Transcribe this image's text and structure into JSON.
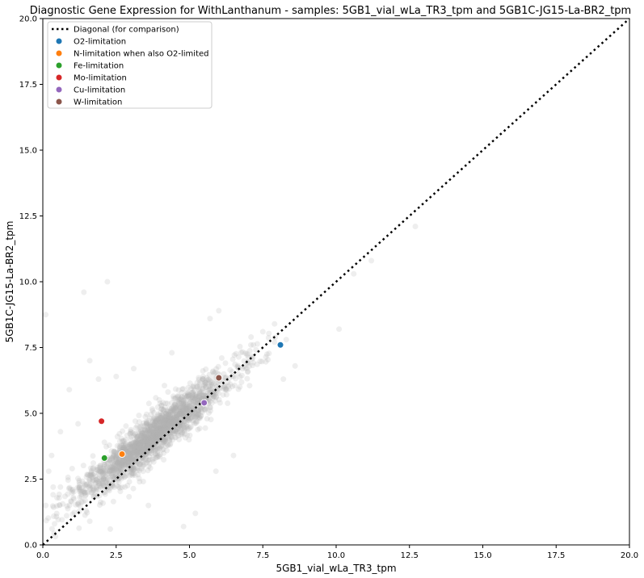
{
  "chart_data": {
    "type": "scatter",
    "title": "Diagnostic Gene Expression for WithLanthanum - samples: 5GB1_vial_wLa_TR3_tpm and 5GB1C-JG15-La-BR2_tpm",
    "xlabel": "5GB1_vial_wLa_TR3_tpm",
    "ylabel": "5GB1C-JG15-La-BR2_tpm",
    "xlim": [
      0,
      20
    ],
    "ylim": [
      0,
      20
    ],
    "xticks": [
      "0.0",
      "2.5",
      "5.0",
      "7.5",
      "10.0",
      "12.5",
      "15.0",
      "17.5",
      "20.0"
    ],
    "yticks": [
      "0.0",
      "2.5",
      "5.0",
      "7.5",
      "10.0",
      "12.5",
      "15.0",
      "17.5",
      "20.0"
    ],
    "grid": false,
    "legend_position": "top-left",
    "diagonal": {
      "label": "Diagonal (for comparison)",
      "from": [
        0,
        0
      ],
      "to": [
        20,
        20
      ],
      "style": "dotted",
      "color": "#000000"
    },
    "background_series": {
      "color": "#b0b0b0",
      "opacity": 0.22,
      "approx_point_count": 2000,
      "trend": "y ≈ 0.85 + 0.87·x, dense cluster between x≈1.5 and x≈7",
      "outliers": [
        [
          0.1,
          8.75
        ],
        [
          1.4,
          9.6
        ],
        [
          2.2,
          10.0
        ],
        [
          1.6,
          7.0
        ],
        [
          1.9,
          6.3
        ],
        [
          2.5,
          6.4
        ],
        [
          2.1,
          3.9
        ],
        [
          0.6,
          4.3
        ],
        [
          0.2,
          2.8
        ],
        [
          0.6,
          2.2
        ],
        [
          0.1,
          1.5
        ],
        [
          1.6,
          0.9
        ],
        [
          2.3,
          0.6
        ],
        [
          3.6,
          1.5
        ],
        [
          5.2,
          1.2
        ],
        [
          4.8,
          0.7
        ],
        [
          5.9,
          2.8
        ],
        [
          6.5,
          3.4
        ],
        [
          10.1,
          8.2
        ],
        [
          10.6,
          10.3
        ],
        [
          11.2,
          10.8
        ],
        [
          12.7,
          12.1
        ],
        [
          8.3,
          7.8
        ],
        [
          8.6,
          6.8
        ],
        [
          8.2,
          6.3
        ],
        [
          7.9,
          8.4
        ],
        [
          6.0,
          8.9
        ],
        [
          5.7,
          8.6
        ],
        [
          6.1,
          7.1
        ],
        [
          1.2,
          4.6
        ],
        [
          0.9,
          5.9
        ],
        [
          3.1,
          6.7
        ],
        [
          4.4,
          7.3
        ],
        [
          7.1,
          7.9
        ],
        [
          2.8,
          2.2
        ],
        [
          3.3,
          2.4
        ],
        [
          7.5,
          8.1
        ],
        [
          0.3,
          3.4
        ],
        [
          1.0,
          2.9
        ]
      ]
    },
    "series": [
      {
        "name": "O2-limitation",
        "color": "#1f77b4",
        "x": [
          8.1
        ],
        "y": [
          7.6
        ]
      },
      {
        "name": "N-limitation when also O2-limited",
        "color": "#ff7f0e",
        "x": [
          2.7
        ],
        "y": [
          3.45
        ]
      },
      {
        "name": "Fe-limitation",
        "color": "#2ca02c",
        "x": [
          2.1
        ],
        "y": [
          3.3
        ]
      },
      {
        "name": "Mo-limitation",
        "color": "#d62728",
        "x": [
          2.0
        ],
        "y": [
          4.7
        ]
      },
      {
        "name": "Cu-limitation",
        "color": "#9467bd",
        "x": [
          5.5
        ],
        "y": [
          5.4
        ]
      },
      {
        "name": "W-limitation",
        "color": "#8c564b",
        "x": [
          6.0
        ],
        "y": [
          6.35
        ]
      }
    ]
  }
}
